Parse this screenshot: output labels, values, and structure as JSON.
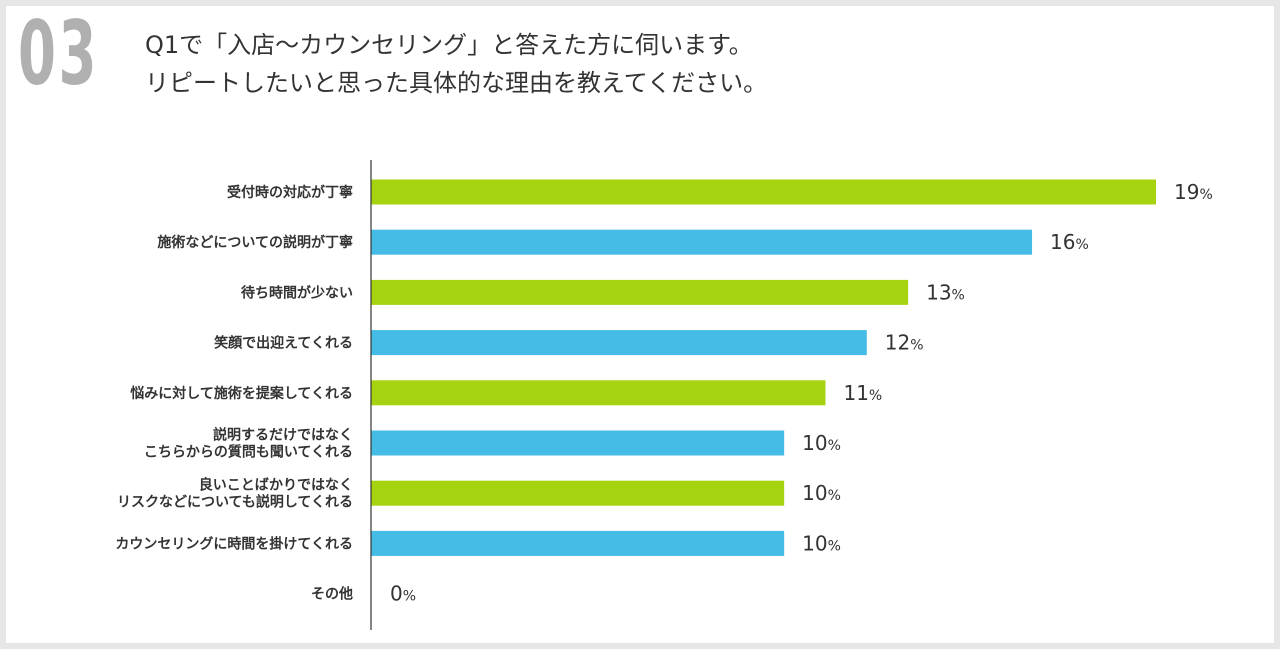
{
  "question_number": "03",
  "question_lines": [
    "Q1で「入店〜カウンセリング」と答えた方に伺います。",
    "リピートしたいと思った具体的な理由を教えてください。"
  ],
  "colors": {
    "green": "#a6d30f",
    "blue": "#45bce6",
    "axis": "#333333",
    "background": "#e6e6e6",
    "number": "#b0b0b0"
  },
  "chart_data": {
    "type": "bar",
    "orientation": "horizontal",
    "unit": "%",
    "categories": [
      [
        "受付時の対応が丁寧"
      ],
      [
        "施術などについての説明が丁寧"
      ],
      [
        "待ち時間が少ない"
      ],
      [
        "笑顔で出迎えてくれる"
      ],
      [
        "悩みに対して施術を提案してくれる"
      ],
      [
        "説明するだけではなく",
        "こちらからの質問も聞いてくれる"
      ],
      [
        "良いことばかりではなく",
        "リスクなどについても説明してくれる"
      ],
      [
        "カウンセリングに時間を掛けてくれる"
      ],
      [
        "その他"
      ]
    ],
    "values": [
      19,
      16,
      13,
      12,
      11,
      10,
      10,
      10,
      0
    ],
    "bar_colors": [
      "green",
      "blue",
      "green",
      "blue",
      "green",
      "blue",
      "green",
      "blue",
      "green"
    ],
    "xlim": [
      0,
      19
    ],
    "grid": false,
    "legend": "none"
  }
}
